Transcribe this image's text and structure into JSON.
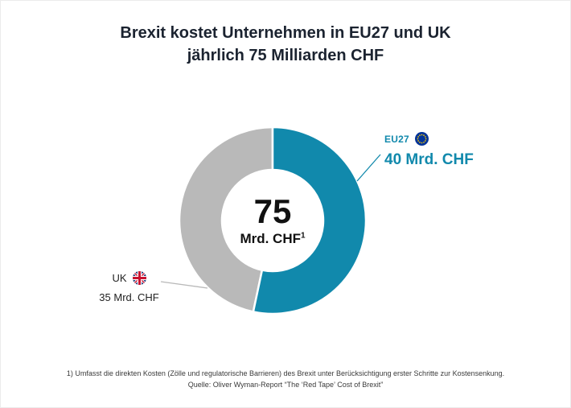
{
  "title": {
    "line1": "Brexit kostet Unternehmen in EU27 und UK",
    "line2": "jährlich 75 Milliarden CHF"
  },
  "chart_data": {
    "type": "pie",
    "subtype": "donut",
    "categories": [
      "EU27",
      "UK"
    ],
    "values": [
      40,
      35
    ],
    "unit": "Mrd. CHF",
    "total": 75,
    "colors": [
      "#1189ac",
      "#b9b9b9"
    ],
    "start_angle_deg": -90,
    "direction": "clockwise",
    "center_label": {
      "value": "75",
      "unit": "Mrd. CHF",
      "footnote_marker": "1"
    },
    "legend_position": "callouts"
  },
  "labels": {
    "eu27": {
      "name": "EU27",
      "value_text": "40 Mrd. CHF"
    },
    "uk": {
      "name": "UK",
      "value_text": "35 Mrd. CHF"
    }
  },
  "footnote": {
    "line1": "1)    Umfasst die direkten Kosten (Zölle und regulatorische Barrieren) des Brexit unter  Berücksichtigung erster Schritte zur Kostensenkung.",
    "line2": "Quelle: Oliver Wyman-Report “The ‘Red Tape’ Cost of Brexit”"
  }
}
